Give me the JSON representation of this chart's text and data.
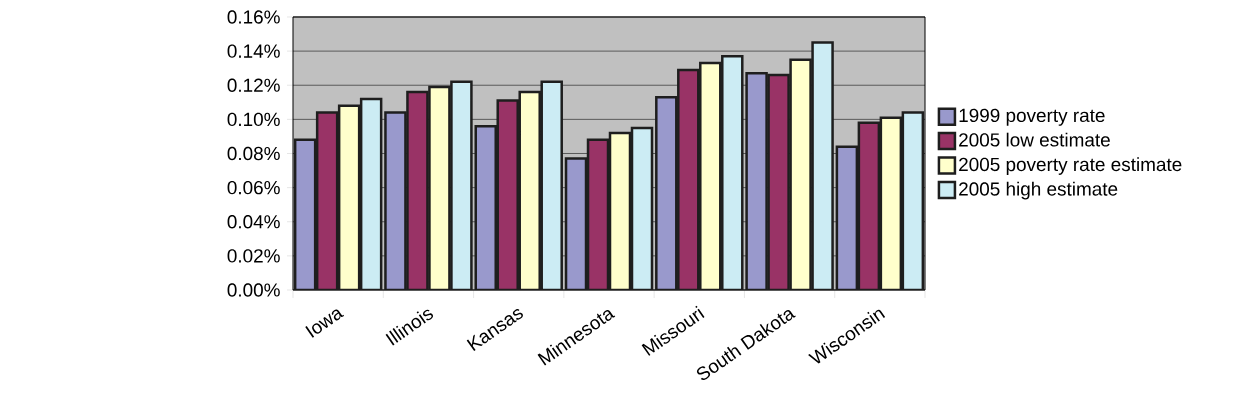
{
  "chart_data": {
    "type": "bar",
    "categories": [
      "Iowa",
      "Illinois",
      "Kansas",
      "Minnesota",
      "Missouri",
      "South Dakota",
      "Wisconsin"
    ],
    "series": [
      {
        "name": "1999 poverty rate",
        "color": "#9999cc",
        "values": [
          0.088,
          0.104,
          0.096,
          0.077,
          0.113,
          0.127,
          0.084
        ]
      },
      {
        "name": "2005 low estimate",
        "color": "#993366",
        "values": [
          0.104,
          0.116,
          0.111,
          0.088,
          0.129,
          0.126,
          0.098
        ]
      },
      {
        "name": "2005 poverty rate estimate",
        "color": "#ffffcc",
        "values": [
          0.108,
          0.119,
          0.116,
          0.092,
          0.133,
          0.135,
          0.101
        ]
      },
      {
        "name": "2005 high estimate",
        "color": "#ccecf4",
        "values": [
          0.112,
          0.122,
          0.122,
          0.095,
          0.137,
          0.145,
          0.104
        ]
      }
    ],
    "ylim": [
      0,
      0.16
    ],
    "yticks": [
      {
        "value": 0,
        "label": "0.00%"
      },
      {
        "value": 0.02,
        "label": "0.02%"
      },
      {
        "value": 0.04,
        "label": "0.04%"
      },
      {
        "value": 0.06,
        "label": "0.06%"
      },
      {
        "value": 0.08,
        "label": "0.08%"
      },
      {
        "value": 0.1,
        "label": "0.10%"
      },
      {
        "value": 0.12,
        "label": "0.12%"
      },
      {
        "value": 0.14,
        "label": "0.14%"
      },
      {
        "value": 0.16,
        "label": "0.16%"
      }
    ],
    "grid": "y",
    "legend": "right"
  }
}
